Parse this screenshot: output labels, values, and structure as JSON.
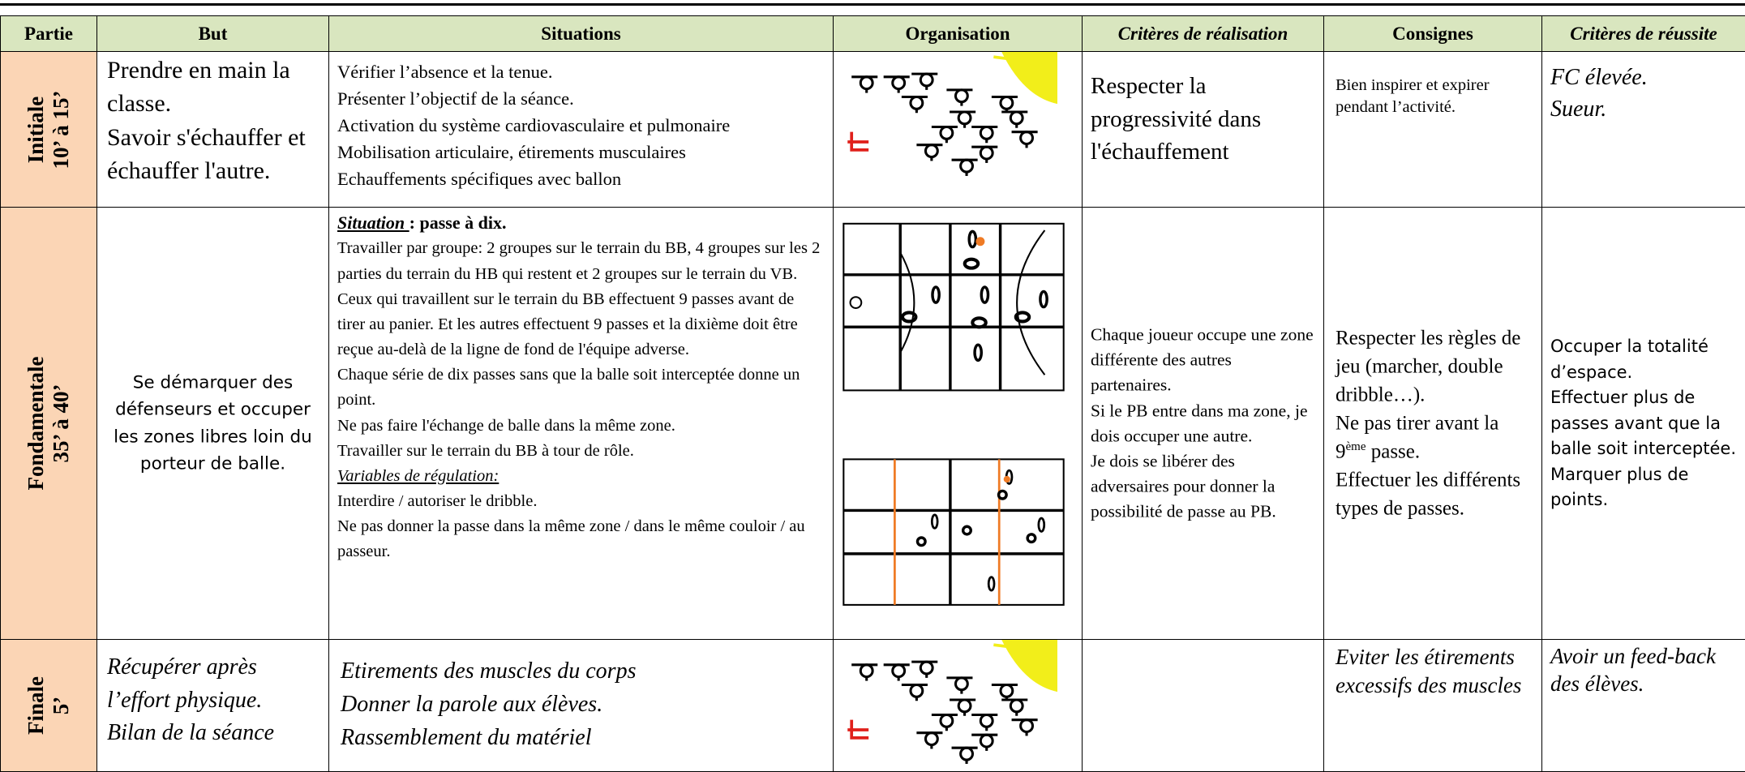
{
  "table": {
    "header": [
      "Partie",
      "But",
      "Situations",
      "Organisation",
      "Critères de réalisation",
      "Consignes",
      "Critères de réussite"
    ],
    "rows": [
      {
        "partie": [
          "Initiale",
          "10’  à 15’"
        ],
        "but": [
          "Prendre en main la classe.",
          "Savoir s'échauffer et échauffer l'autre."
        ],
        "situations": [
          "Vérifier l’absence et la tenue.",
          "Présenter l’objectif de la séance.",
          "Activation du système cardiovasculaire et pulmonaire",
          "Mobilisation articulaire, étirements musculaires",
          "Echauffements spécifiques avec ballon"
        ],
        "criteres_realisation": [
          "Respecter la progressivité dans l'échauffement"
        ],
        "consignes": [
          "Bien inspirer et expirer pendant l’activité."
        ],
        "criteres_reussite": [
          "FC élevée.",
          "Sueur."
        ]
      },
      {
        "partie": [
          "Fondamentale",
          "35’ à 40’"
        ],
        "but": [
          "Se démarquer des défenseurs et occuper les zones libres loin du porteur de balle."
        ],
        "situations": {
          "title": "Situation ",
          "title_rest": ": passe à dix.",
          "lines": [
            "Travailler par groupe: 2 groupes sur le terrain du BB, 4 groupes sur les 2 parties du terrain du HB qui restent et 2 groupes sur le terrain du VB.",
            "Ceux qui travaillent sur le terrain du BB effectuent 9 passes avant de tirer au panier. Et les autres effectuent 9 passes et la dixième doit être reçue au-delà de la ligne de fond de l'équipe adverse.",
            "Chaque série de dix passes sans que la balle soit interceptée donne un point.",
            "Ne pas faire l'échange de balle dans la même zone.",
            "Travailler sur le terrain du BB à tour de rôle."
          ],
          "variables_title": "Variables de régulation:",
          "variables": [
            "Interdire / autoriser le dribble.",
            "Ne pas donner la passe dans la même zone / dans le même couloir / au passeur."
          ]
        },
        "criteres_realisation": [
          "Chaque joueur occupe une zone différente des autres partenaires.",
          "Si le PB entre dans ma zone, je dois occuper une autre.",
          "Je dois se libérer des adversaires pour donner la possibilité de passe au PB."
        ],
        "consignes": [
          "Respecter les règles de jeu (marcher, double dribble…).",
          {
            "text": "Ne pas tirer avant la 9",
            "sup": "ème",
            "tail": " passe."
          },
          "Effectuer les différents types de passes."
        ],
        "criteres_reussite": [
          "Occuper la totalité d’espace.",
          "Effectuer plus de passes avant que la balle soit interceptée.",
          "Marquer plus de points."
        ]
      },
      {
        "partie": [
          "Finale",
          "5’"
        ],
        "but": [
          "Récupérer après l’effort physique.",
          "Bilan de la séance"
        ],
        "situations": [
          "Etirements des muscles du corps",
          "Donner la parole aux élèves.",
          "Rassemblement du matériel"
        ],
        "consignes": [
          "Eviter les étirements excessifs des muscles"
        ],
        "criteres_reussite": [
          "Avoir  un feed-back des élèves."
        ]
      }
    ]
  }
}
